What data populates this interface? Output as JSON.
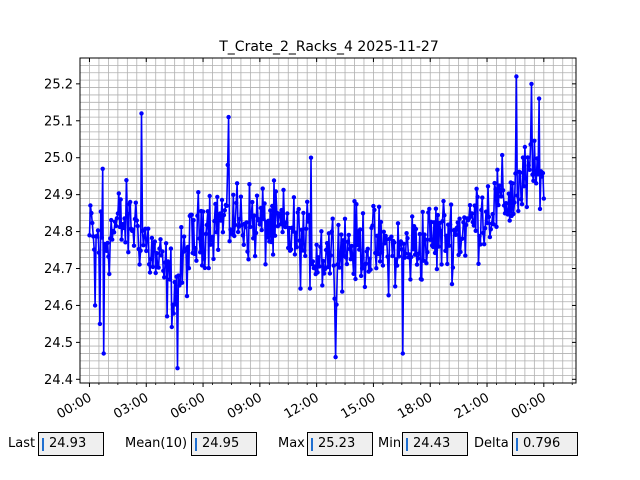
{
  "chart_data": {
    "type": "line",
    "title": "T_Crate_2_Racks_4 2025-11-27",
    "xlabel": "",
    "ylabel": "",
    "x_range_hours": [
      -0.5,
      25.7
    ],
    "ylim": [
      24.39,
      25.27
    ],
    "x_ticks": [
      "00:00",
      "03:00",
      "06:00",
      "09:00",
      "12:00",
      "15:00",
      "18:00",
      "21:00",
      "00:00"
    ],
    "x_tick_hours": [
      0,
      3,
      6,
      9,
      12,
      15,
      18,
      21,
      24
    ],
    "y_ticks": [
      "24.4",
      "24.5",
      "24.6",
      "24.7",
      "24.8",
      "24.9",
      "25.0",
      "25.1",
      "25.2"
    ],
    "y_tick_values": [
      24.4,
      24.5,
      24.6,
      24.7,
      24.8,
      24.9,
      25.0,
      25.1,
      25.2
    ],
    "grid": true,
    "minor_grid": true,
    "series": [
      {
        "color": "#0000ff",
        "marker": "circle",
        "sample_interval_min": 3,
        "start_hour": 0.0,
        "anchors": [
          [
            0.0,
            24.78
          ],
          [
            1.0,
            24.78
          ],
          [
            1.5,
            24.82
          ],
          [
            2.5,
            24.82
          ],
          [
            3.5,
            24.72
          ],
          [
            4.5,
            24.64
          ],
          [
            5.0,
            24.72
          ],
          [
            6.0,
            24.82
          ],
          [
            7.5,
            24.84
          ],
          [
            9.0,
            24.82
          ],
          [
            10.5,
            24.8
          ],
          [
            12.0,
            24.74
          ],
          [
            13.5,
            24.76
          ],
          [
            15.0,
            24.76
          ],
          [
            16.5,
            24.74
          ],
          [
            18.0,
            24.78
          ],
          [
            19.5,
            24.8
          ],
          [
            21.0,
            24.86
          ],
          [
            22.5,
            24.9
          ],
          [
            23.5,
            24.96
          ],
          [
            24.0,
            24.92
          ]
        ],
        "noise_amplitude": 0.16,
        "values": [],
        "notable_points": [
          [
            0.1,
            24.85
          ],
          [
            0.3,
            24.6
          ],
          [
            0.55,
            24.55
          ],
          [
            0.7,
            24.97
          ],
          [
            0.75,
            24.47
          ],
          [
            2.75,
            25.12
          ],
          [
            4.65,
            24.43
          ],
          [
            7.35,
            25.11
          ],
          [
            11.7,
            25.0
          ],
          [
            13.0,
            24.46
          ],
          [
            16.55,
            24.47
          ],
          [
            22.55,
            25.22
          ],
          [
            23.35,
            25.2
          ],
          [
            23.75,
            25.16
          ]
        ]
      }
    ]
  },
  "stats": [
    {
      "label": "Last",
      "value": "24.93"
    },
    {
      "label": "Mean(10)",
      "value": "24.95"
    },
    {
      "label": "Max",
      "value": "25.23"
    },
    {
      "label": "Min",
      "value": "24.43"
    },
    {
      "label": "Delta",
      "value": "0.796"
    }
  ]
}
